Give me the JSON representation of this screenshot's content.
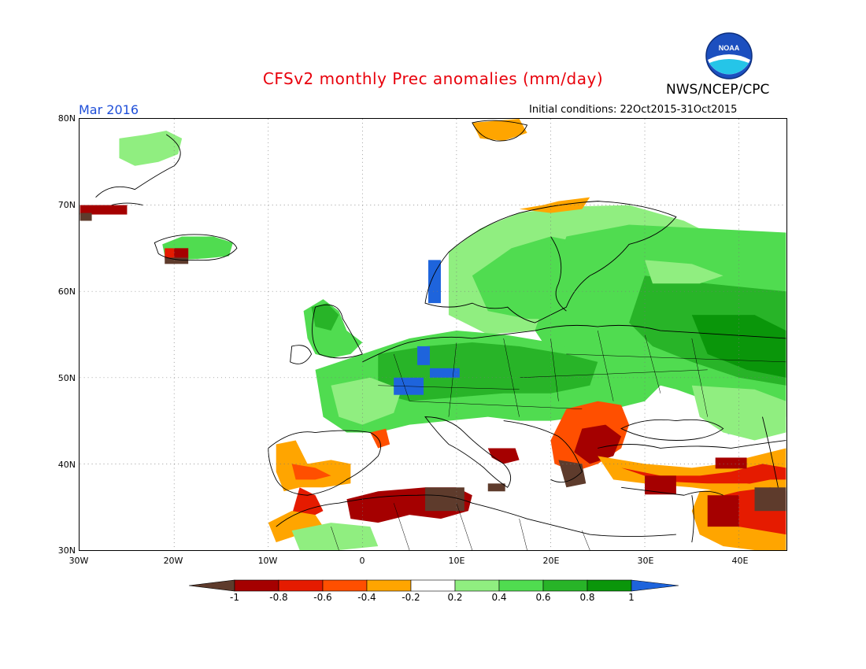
{
  "title": "CFSv2 monthly Prec anomalies (mm/day)",
  "agency": "NWS/NCEP/CPC",
  "logo_text": "NOAA",
  "valid_month": "Mar 2016",
  "initial_conditions": "Initial conditions: 22Oct2015-31Oct2015",
  "lat_labels": [
    "80N",
    "70N",
    "60N",
    "50N",
    "40N",
    "30N"
  ],
  "lon_labels": [
    "30W",
    "20W",
    "10W",
    "0",
    "10E",
    "20E",
    "30E",
    "40E"
  ],
  "colorbar": {
    "labels": [
      "-1",
      "-0.8",
      "-0.6",
      "-0.4",
      "-0.2",
      "0.2",
      "0.4",
      "0.6",
      "0.8",
      "1"
    ],
    "colors": [
      "#5e3b2c",
      "#a50000",
      "#e51b00",
      "#ff4f00",
      "#ffa500",
      "#ffffff",
      "#90ee80",
      "#50dc50",
      "#28b428",
      "#0a960a",
      "#1e64dc"
    ]
  },
  "colors": {
    "title": "#e8000b",
    "month": "#1f4fd9",
    "land_outline": "#000000",
    "grid": "#777777"
  }
}
